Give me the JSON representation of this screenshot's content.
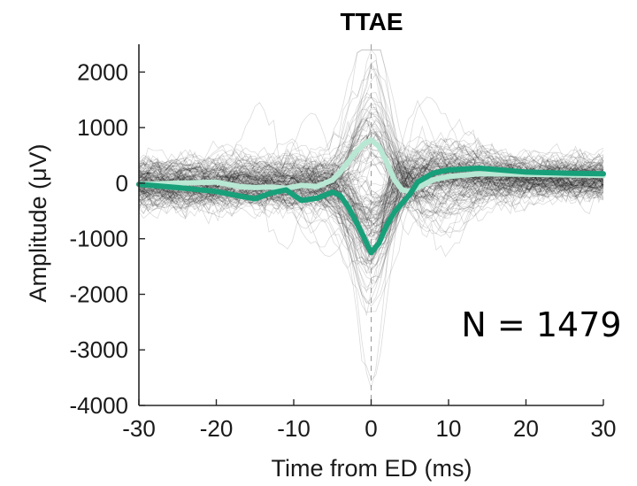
{
  "chart_data": {
    "type": "line",
    "title": "TTAE",
    "xlabel": "Time from ED (ms)",
    "ylabel": "Amplitude (μV)",
    "xlim": [
      -30,
      30
    ],
    "ylim": [
      -4000,
      2500
    ],
    "xticks": [
      -30,
      -20,
      -10,
      0,
      10,
      20,
      30
    ],
    "yticks": [
      -4000,
      -3000,
      -2000,
      -1000,
      0,
      1000,
      2000
    ],
    "annotation": "N = 1479",
    "individual_traces_count": 1479,
    "colors": {
      "traces": "#000000",
      "mean_light": "#b8e8d4",
      "mean_dark": "#17a07a",
      "axis": "#262626",
      "center_line": "#9a9a9a"
    },
    "series": [
      {
        "color": "#b8e8d4",
        "x": [
          -30,
          -25,
          -20,
          -17,
          -15,
          -13,
          -11,
          -9,
          -7,
          -5,
          -4,
          -3,
          -2,
          -1,
          0,
          1,
          2,
          3,
          4,
          5,
          6,
          8,
          10,
          14,
          20,
          25,
          30
        ],
        "y": [
          -20,
          0,
          20,
          -60,
          -80,
          -70,
          -90,
          -40,
          -60,
          60,
          200,
          380,
          560,
          700,
          780,
          660,
          380,
          60,
          -120,
          -150,
          -80,
          60,
          120,
          170,
          160,
          150,
          140
        ]
      },
      {
        "color": "#17a07a",
        "x": [
          -30,
          -25,
          -20,
          -17,
          -15,
          -13,
          -11,
          -9,
          -7,
          -5,
          -4,
          -3,
          -2,
          -1,
          0,
          1,
          2,
          3,
          4,
          5,
          6,
          8,
          10,
          14,
          20,
          25,
          30
        ],
        "y": [
          -20,
          -80,
          -150,
          -230,
          -280,
          -180,
          -120,
          -310,
          -270,
          -160,
          -220,
          -420,
          -680,
          -960,
          -1250,
          -1080,
          -760,
          -520,
          -360,
          -200,
          20,
          180,
          240,
          270,
          200,
          180,
          170
        ]
      }
    ]
  }
}
